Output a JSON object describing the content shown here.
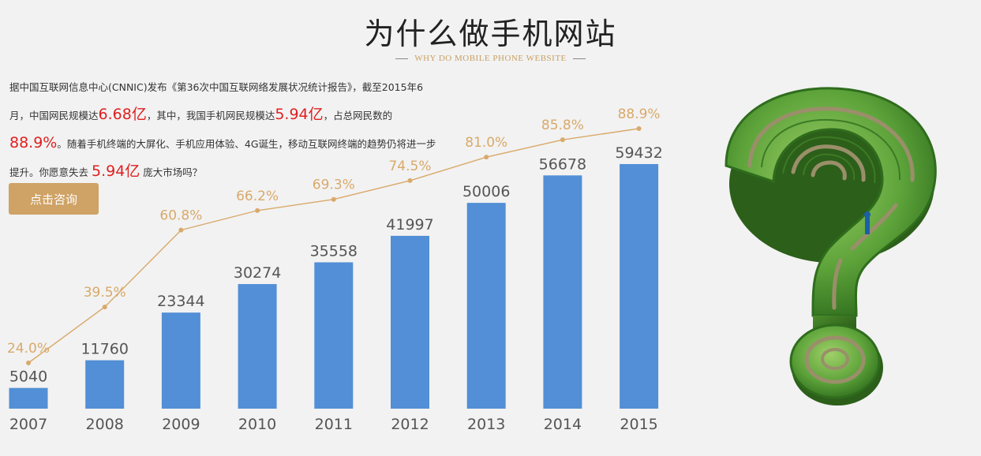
{
  "header": {
    "title": "为什么做手机网站",
    "subtitle": "WHY DO MOBILE PHONE WEBSITE"
  },
  "intro": {
    "t1": "据中国互联网信息中心(CNNIC)发布《第36次中国互联网络发展状况统计报告》，截至2015年6月，中国网民规模达",
    "h1": "6.68亿",
    "t2": "，其中，我国手机网民规模达",
    "h2": "5.94亿",
    "t3": "，占总网民数的",
    "h3": "88.9%",
    "t4": "。随着手机终端的大屏化、手机应用体验、4G诞生，移动互联网终端的趋势仍将进一步提升。你愿意失去",
    "h4": "5.94亿",
    "t5": "庞大市场吗？"
  },
  "cta": {
    "label": "点击咨询"
  },
  "colors": {
    "bar": "#528fd6",
    "line": "#d9a96a",
    "accent": "#cfa265",
    "highlight": "#e02020"
  },
  "image": {
    "icon": "question-mark-maze-icon"
  },
  "chart_data": {
    "type": "bar",
    "categories": [
      "2007",
      "2008",
      "2009",
      "2010",
      "2011",
      "2012",
      "2013",
      "2014",
      "2015"
    ],
    "values": [
      5040,
      11760,
      23344,
      30274,
      35558,
      41997,
      50006,
      56678,
      59432
    ],
    "line_series": {
      "type": "line",
      "values": [
        24.0,
        39.5,
        60.8,
        66.2,
        69.3,
        74.5,
        81.0,
        85.8,
        88.9
      ],
      "labels": [
        "24.0%",
        "39.5%",
        "60.8%",
        "66.2%",
        "69.3%",
        "74.5%",
        "81.0%",
        "85.8%",
        "88.9%"
      ]
    },
    "title": "",
    "xlabel": "",
    "ylabel": "",
    "ylim": [
      0,
      60000
    ],
    "grid": false,
    "legend": "none"
  }
}
